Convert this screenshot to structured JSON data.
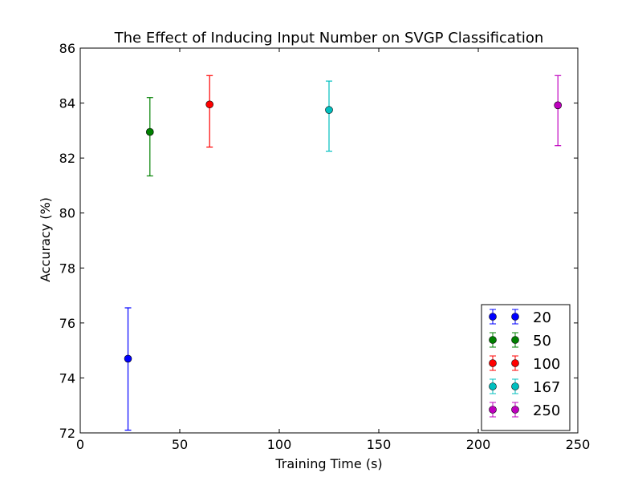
{
  "chart_data": {
    "type": "scatter",
    "title": "The Effect of Inducing Input Number on SVGP Classification",
    "xlabel": "Training Time (s)",
    "ylabel": "Accuracy (%)",
    "xlim": [
      0,
      250
    ],
    "ylim": [
      72,
      86
    ],
    "xticks": [
      0,
      50,
      100,
      150,
      200,
      250
    ],
    "yticks": [
      72,
      74,
      76,
      78,
      80,
      82,
      84,
      86
    ],
    "grid": false,
    "error_bars": true,
    "legend_position": "lower-right",
    "series": [
      {
        "name": "20",
        "color": "#0000ff",
        "points": [
          {
            "x": 24,
            "y": 74.7,
            "ylow": 72.1,
            "yhigh": 76.55
          }
        ]
      },
      {
        "name": "50",
        "color": "#008000",
        "points": [
          {
            "x": 35,
            "y": 82.95,
            "ylow": 81.35,
            "yhigh": 84.2
          }
        ]
      },
      {
        "name": "100",
        "color": "#ff0000",
        "points": [
          {
            "x": 65,
            "y": 83.95,
            "ylow": 82.4,
            "yhigh": 85.0
          }
        ]
      },
      {
        "name": "167",
        "color": "#00bfbf",
        "points": [
          {
            "x": 125,
            "y": 83.75,
            "ylow": 82.25,
            "yhigh": 84.8
          }
        ]
      },
      {
        "name": "250",
        "color": "#bf00bf",
        "points": [
          {
            "x": 240,
            "y": 83.92,
            "ylow": 82.45,
            "yhigh": 85.0
          }
        ]
      }
    ]
  }
}
